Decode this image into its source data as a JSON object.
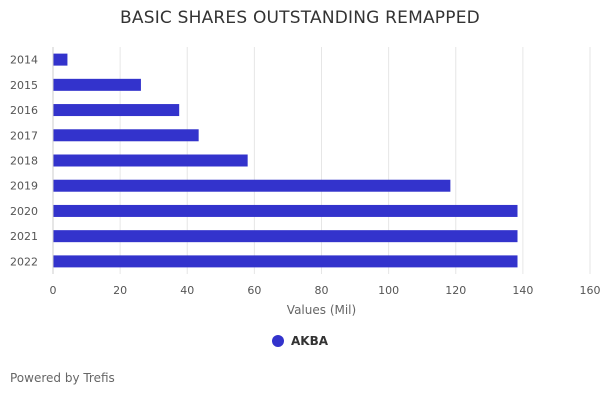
{
  "chart_data": {
    "type": "bar",
    "orientation": "horizontal",
    "title": "BASIC SHARES OUTSTANDING REMAPPED",
    "xlabel": "Values (Mil)",
    "categories": [
      "2014",
      "2015",
      "2016",
      "2017",
      "2018",
      "2019",
      "2020",
      "2021",
      "2022"
    ],
    "series": [
      {
        "name": "AKBA",
        "color": "#3333cc",
        "values": [
          4.3,
          26.2,
          37.6,
          43.4,
          58.0,
          118.4,
          138.4,
          138.4,
          138.4
        ]
      }
    ],
    "ticks": [
      0,
      20,
      40,
      60,
      80,
      100,
      120,
      140,
      160
    ],
    "xlim": [
      0,
      160
    ],
    "grid": true,
    "legend": "bottom-center"
  },
  "credits": "Powered by Trefis"
}
